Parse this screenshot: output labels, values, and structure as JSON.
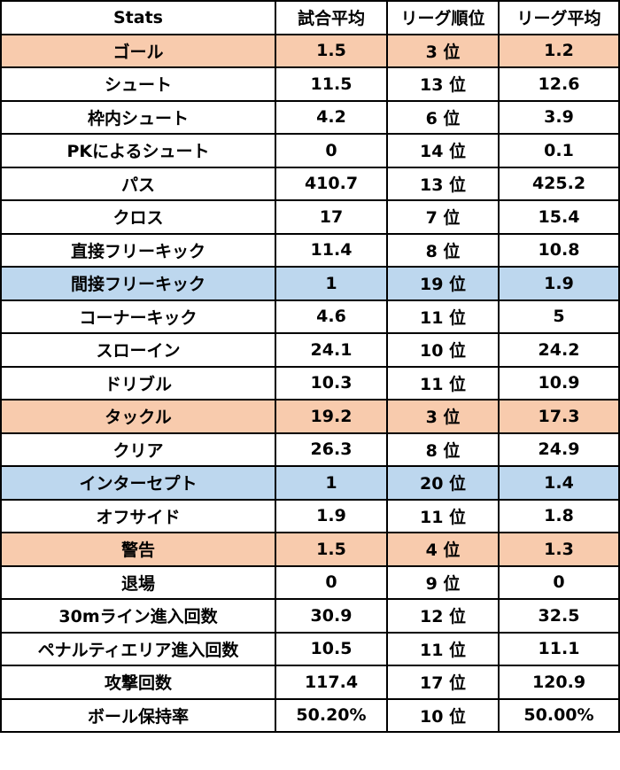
{
  "colors": {
    "highlight_good": "#f8cbad",
    "highlight_bad": "#bdd7ee",
    "default": "#ffffff",
    "border": "#000000"
  },
  "headers": [
    "Stats",
    "試合平均",
    "リーグ順位",
    "リーグ平均"
  ],
  "rows": [
    {
      "stat": "ゴール",
      "match_avg": "1.5",
      "rank": "3 位",
      "league_avg": "1.2",
      "highlight": "good"
    },
    {
      "stat": "シュート",
      "match_avg": "11.5",
      "rank": "13 位",
      "league_avg": "12.6",
      "highlight": "none"
    },
    {
      "stat": "枠内シュート",
      "match_avg": "4.2",
      "rank": "6 位",
      "league_avg": "3.9",
      "highlight": "none"
    },
    {
      "stat": "PKによるシュート",
      "match_avg": "0",
      "rank": "14 位",
      "league_avg": "0.1",
      "highlight": "none"
    },
    {
      "stat": "パス",
      "match_avg": "410.7",
      "rank": "13 位",
      "league_avg": "425.2",
      "highlight": "none"
    },
    {
      "stat": "クロス",
      "match_avg": "17",
      "rank": "7 位",
      "league_avg": "15.4",
      "highlight": "none"
    },
    {
      "stat": "直接フリーキック",
      "match_avg": "11.4",
      "rank": "8 位",
      "league_avg": "10.8",
      "highlight": "none"
    },
    {
      "stat": "間接フリーキック",
      "match_avg": "1",
      "rank": "19 位",
      "league_avg": "1.9",
      "highlight": "bad"
    },
    {
      "stat": "コーナーキック",
      "match_avg": "4.6",
      "rank": "11 位",
      "league_avg": "5",
      "highlight": "none"
    },
    {
      "stat": "スローイン",
      "match_avg": "24.1",
      "rank": "10 位",
      "league_avg": "24.2",
      "highlight": "none"
    },
    {
      "stat": "ドリブル",
      "match_avg": "10.3",
      "rank": "11 位",
      "league_avg": "10.9",
      "highlight": "none"
    },
    {
      "stat": "タックル",
      "match_avg": "19.2",
      "rank": "3 位",
      "league_avg": "17.3",
      "highlight": "good"
    },
    {
      "stat": "クリア",
      "match_avg": "26.3",
      "rank": "8 位",
      "league_avg": "24.9",
      "highlight": "none"
    },
    {
      "stat": "インターセプト",
      "match_avg": "1",
      "rank": "20 位",
      "league_avg": "1.4",
      "highlight": "bad"
    },
    {
      "stat": "オフサイド",
      "match_avg": "1.9",
      "rank": "11 位",
      "league_avg": "1.8",
      "highlight": "none"
    },
    {
      "stat": "警告",
      "match_avg": "1.5",
      "rank": "4 位",
      "league_avg": "1.3",
      "highlight": "good"
    },
    {
      "stat": "退場",
      "match_avg": "0",
      "rank": "9 位",
      "league_avg": "0",
      "highlight": "none"
    },
    {
      "stat": "30mライン進入回数",
      "match_avg": "30.9",
      "rank": "12 位",
      "league_avg": "32.5",
      "highlight": "none"
    },
    {
      "stat": "ペナルティエリア進入回数",
      "match_avg": "10.5",
      "rank": "11 位",
      "league_avg": "11.1",
      "highlight": "none"
    },
    {
      "stat": "攻撃回数",
      "match_avg": "117.4",
      "rank": "17 位",
      "league_avg": "120.9",
      "highlight": "none"
    },
    {
      "stat": "ボール保持率",
      "match_avg": "50.20%",
      "rank": "10 位",
      "league_avg": "50.00%",
      "highlight": "none"
    }
  ]
}
